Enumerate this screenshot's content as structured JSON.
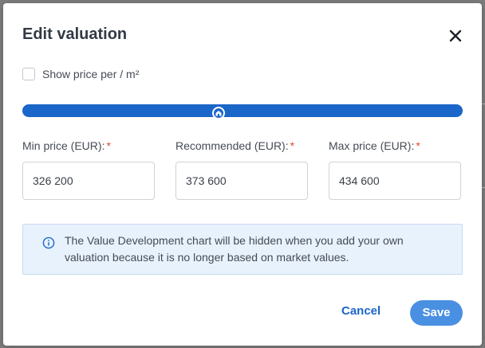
{
  "dialog": {
    "title": "Edit valuation",
    "close_icon": "close-icon",
    "per_m2_label": "Show price per / m²",
    "per_m2_checked": false,
    "slider_icon": "home-icon",
    "min": {
      "label": "Min price (EUR):",
      "value": "326 200"
    },
    "recommended": {
      "label": "Recommended (EUR):",
      "value": "373 600"
    },
    "max": {
      "label": "Max price (EUR):",
      "value": "434 600"
    },
    "required_mark": "*",
    "info_icon": "info-icon",
    "info_text": "The Value Development chart will be hidden when you add your own valuation because it is no longer based on market values.",
    "cancel_label": "Cancel",
    "save_label": "Save"
  },
  "colors": {
    "accent": "#1b66c9",
    "save_button": "#4a90e2",
    "required": "#e2493a",
    "info_bg": "#e8f2fc"
  }
}
